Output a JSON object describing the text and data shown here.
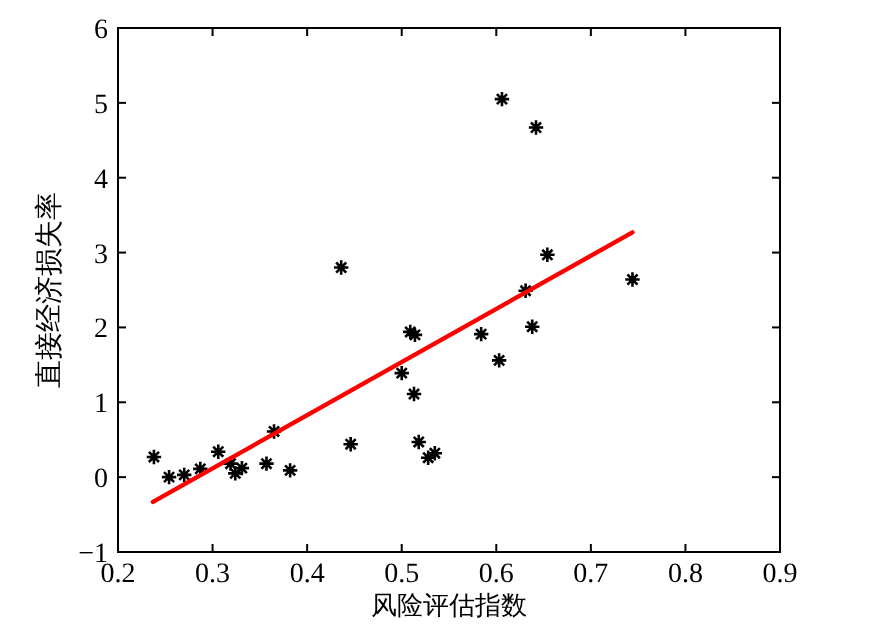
{
  "chart_data": {
    "type": "scatter",
    "xlabel": "风险评估指数",
    "ylabel": "直接经济损失率",
    "xlim": [
      0.2,
      0.9
    ],
    "ylim": [
      -1,
      6
    ],
    "xticks": [
      0.2,
      0.3,
      0.4,
      0.5,
      0.6,
      0.7,
      0.8,
      0.9
    ],
    "yticks": [
      -1,
      0,
      1,
      2,
      3,
      4,
      5,
      6
    ],
    "grid": false,
    "series": [
      {
        "marker": "cross",
        "color": "#000000",
        "x": [
          0.238,
          0.254,
          0.27,
          0.287,
          0.306,
          0.319,
          0.324,
          0.331,
          0.357,
          0.365,
          0.382,
          0.436,
          0.446,
          0.5,
          0.509,
          0.514,
          0.513,
          0.518,
          0.528,
          0.535,
          0.606,
          0.642,
          0.654,
          0.631,
          0.638,
          0.584,
          0.603,
          0.744
        ],
        "values": [
          0.27,
          0.0,
          0.03,
          0.11,
          0.34,
          0.18,
          0.05,
          0.12,
          0.18,
          0.61,
          0.09,
          2.8,
          0.44,
          1.39,
          1.94,
          1.9,
          1.11,
          0.47,
          0.26,
          0.32,
          5.05,
          4.67,
          2.97,
          2.49,
          2.01,
          1.91,
          1.56,
          2.64
        ]
      },
      {
        "type": "line",
        "line_style": "solid",
        "marker": "none",
        "color": "#ff0000",
        "x": [
          0.237,
          0.744
        ],
        "values": [
          -0.33,
          3.27
        ]
      }
    ]
  }
}
